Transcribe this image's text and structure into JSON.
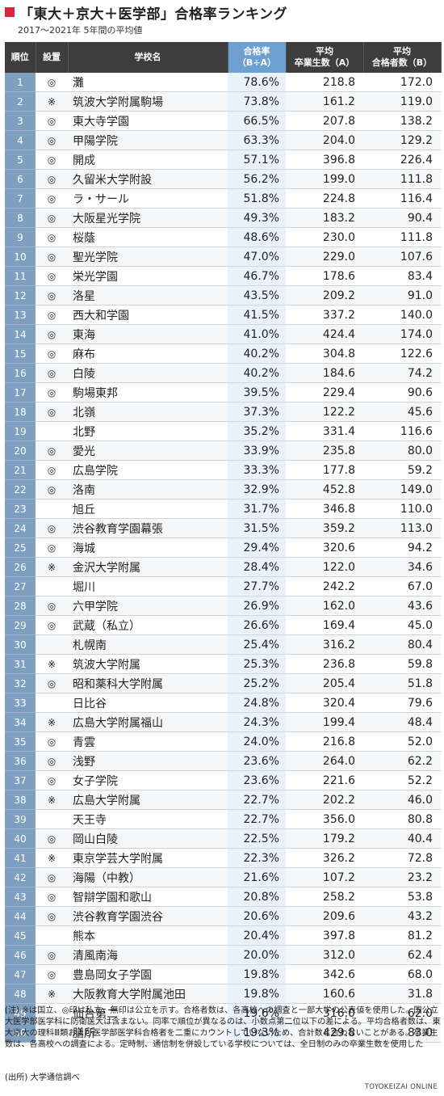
{
  "title": "「東大＋京大＋医学部」合格率ランキング",
  "subtitle": "2017～2021年 5年間の平均値",
  "headers": {
    "rank": "順位",
    "kind": "設置",
    "school": "学校名",
    "rate_line1": "合格率",
    "rate_line2": "（B÷A）",
    "grad_line1": "平均",
    "grad_line2": "卒業生数（A）",
    "pass_line1": "平均",
    "pass_line2": "合格者数（B）"
  },
  "rows": [
    {
      "rank": "1",
      "kind": "◎",
      "school": "灘",
      "rate": "78.6%",
      "grads": "218.8",
      "passes": "172.0"
    },
    {
      "rank": "2",
      "kind": "※",
      "school": "筑波大学附属駒場",
      "rate": "73.8%",
      "grads": "161.2",
      "passes": "119.0"
    },
    {
      "rank": "3",
      "kind": "◎",
      "school": "東大寺学園",
      "rate": "66.5%",
      "grads": "207.8",
      "passes": "138.2"
    },
    {
      "rank": "4",
      "kind": "◎",
      "school": "甲陽学院",
      "rate": "63.3%",
      "grads": "204.0",
      "passes": "129.2"
    },
    {
      "rank": "5",
      "kind": "◎",
      "school": "開成",
      "rate": "57.1%",
      "grads": "396.8",
      "passes": "226.4"
    },
    {
      "rank": "6",
      "kind": "◎",
      "school": "久留米大学附設",
      "rate": "56.2%",
      "grads": "199.0",
      "passes": "111.8"
    },
    {
      "rank": "7",
      "kind": "◎",
      "school": "ラ・サール",
      "rate": "51.8%",
      "grads": "224.8",
      "passes": "116.4"
    },
    {
      "rank": "8",
      "kind": "◎",
      "school": "大阪星光学院",
      "rate": "49.3%",
      "grads": "183.2",
      "passes": "90.4"
    },
    {
      "rank": "9",
      "kind": "◎",
      "school": "桜蔭",
      "rate": "48.6%",
      "grads": "230.0",
      "passes": "111.8"
    },
    {
      "rank": "10",
      "kind": "◎",
      "school": "聖光学院",
      "rate": "47.0%",
      "grads": "229.0",
      "passes": "107.6"
    },
    {
      "rank": "11",
      "kind": "◎",
      "school": "栄光学園",
      "rate": "46.7%",
      "grads": "178.6",
      "passes": "83.4"
    },
    {
      "rank": "12",
      "kind": "◎",
      "school": "洛星",
      "rate": "43.5%",
      "grads": "209.2",
      "passes": "91.0"
    },
    {
      "rank": "13",
      "kind": "◎",
      "school": "西大和学園",
      "rate": "41.5%",
      "grads": "337.2",
      "passes": "140.0"
    },
    {
      "rank": "14",
      "kind": "◎",
      "school": "東海",
      "rate": "41.0%",
      "grads": "424.4",
      "passes": "174.0"
    },
    {
      "rank": "15",
      "kind": "◎",
      "school": "麻布",
      "rate": "40.2%",
      "grads": "304.8",
      "passes": "122.6"
    },
    {
      "rank": "16",
      "kind": "◎",
      "school": "白陵",
      "rate": "40.2%",
      "grads": "184.6",
      "passes": "74.2"
    },
    {
      "rank": "17",
      "kind": "◎",
      "school": "駒場東邦",
      "rate": "39.5%",
      "grads": "229.4",
      "passes": "90.6"
    },
    {
      "rank": "18",
      "kind": "◎",
      "school": "北嶺",
      "rate": "37.3%",
      "grads": "122.2",
      "passes": "45.6"
    },
    {
      "rank": "19",
      "kind": "",
      "school": "北野",
      "rate": "35.2%",
      "grads": "331.4",
      "passes": "116.6"
    },
    {
      "rank": "20",
      "kind": "◎",
      "school": "愛光",
      "rate": "33.9%",
      "grads": "235.8",
      "passes": "80.0"
    },
    {
      "rank": "21",
      "kind": "◎",
      "school": "広島学院",
      "rate": "33.3%",
      "grads": "177.8",
      "passes": "59.2"
    },
    {
      "rank": "22",
      "kind": "◎",
      "school": "洛南",
      "rate": "32.9%",
      "grads": "452.8",
      "passes": "149.0"
    },
    {
      "rank": "23",
      "kind": "",
      "school": "旭丘",
      "rate": "31.7%",
      "grads": "346.8",
      "passes": "110.0"
    },
    {
      "rank": "24",
      "kind": "◎",
      "school": "渋谷教育学園幕張",
      "rate": "31.5%",
      "grads": "359.2",
      "passes": "113.0"
    },
    {
      "rank": "25",
      "kind": "◎",
      "school": "海城",
      "rate": "29.4%",
      "grads": "320.6",
      "passes": "94.2"
    },
    {
      "rank": "26",
      "kind": "※",
      "school": "金沢大学附属",
      "rate": "28.4%",
      "grads": "122.0",
      "passes": "34.6"
    },
    {
      "rank": "27",
      "kind": "",
      "school": "堀川",
      "rate": "27.7%",
      "grads": "242.2",
      "passes": "67.0"
    },
    {
      "rank": "28",
      "kind": "◎",
      "school": "六甲学院",
      "rate": "26.9%",
      "grads": "162.0",
      "passes": "43.6"
    },
    {
      "rank": "29",
      "kind": "◎",
      "school": "武蔵（私立）",
      "rate": "26.6%",
      "grads": "169.4",
      "passes": "45.0"
    },
    {
      "rank": "30",
      "kind": "",
      "school": "札幌南",
      "rate": "25.4%",
      "grads": "316.2",
      "passes": "80.4"
    },
    {
      "rank": "31",
      "kind": "※",
      "school": "筑波大学附属",
      "rate": "25.3%",
      "grads": "236.8",
      "passes": "59.8"
    },
    {
      "rank": "32",
      "kind": "◎",
      "school": "昭和薬科大学附属",
      "rate": "25.2%",
      "grads": "205.4",
      "passes": "51.8"
    },
    {
      "rank": "33",
      "kind": "",
      "school": "日比谷",
      "rate": "24.8%",
      "grads": "320.4",
      "passes": "79.6"
    },
    {
      "rank": "34",
      "kind": "※",
      "school": "広島大学附属福山",
      "rate": "24.3%",
      "grads": "199.4",
      "passes": "48.4"
    },
    {
      "rank": "35",
      "kind": "◎",
      "school": "青雲",
      "rate": "24.0%",
      "grads": "216.8",
      "passes": "52.0"
    },
    {
      "rank": "36",
      "kind": "◎",
      "school": "浅野",
      "rate": "23.6%",
      "grads": "264.0",
      "passes": "62.2"
    },
    {
      "rank": "37",
      "kind": "◎",
      "school": "女子学院",
      "rate": "23.6%",
      "grads": "221.6",
      "passes": "52.2"
    },
    {
      "rank": "38",
      "kind": "※",
      "school": "広島大学附属",
      "rate": "22.7%",
      "grads": "202.2",
      "passes": "46.0"
    },
    {
      "rank": "39",
      "kind": "",
      "school": "天王寺",
      "rate": "22.7%",
      "grads": "356.0",
      "passes": "80.8"
    },
    {
      "rank": "40",
      "kind": "◎",
      "school": "岡山白陵",
      "rate": "22.5%",
      "grads": "179.2",
      "passes": "40.4"
    },
    {
      "rank": "41",
      "kind": "※",
      "school": "東京学芸大学附属",
      "rate": "22.3%",
      "grads": "326.2",
      "passes": "72.8"
    },
    {
      "rank": "42",
      "kind": "◎",
      "school": "海陽（中教）",
      "rate": "21.6%",
      "grads": "107.2",
      "passes": "23.2"
    },
    {
      "rank": "43",
      "kind": "◎",
      "school": "智辯学園和歌山",
      "rate": "20.8%",
      "grads": "258.2",
      "passes": "53.8"
    },
    {
      "rank": "44",
      "kind": "◎",
      "school": "渋谷教育学園渋谷",
      "rate": "20.6%",
      "grads": "209.6",
      "passes": "43.2"
    },
    {
      "rank": "45",
      "kind": "",
      "school": "熊本",
      "rate": "20.4%",
      "grads": "397.8",
      "passes": "81.2"
    },
    {
      "rank": "46",
      "kind": "◎",
      "school": "清風南海",
      "rate": "20.0%",
      "grads": "312.0",
      "passes": "62.4"
    },
    {
      "rank": "47",
      "kind": "◎",
      "school": "豊島岡女子学園",
      "rate": "19.8%",
      "grads": "342.6",
      "passes": "68.0"
    },
    {
      "rank": "48",
      "kind": "※",
      "school": "大阪教育大学附属池田",
      "rate": "19.8%",
      "grads": "160.6",
      "passes": "31.8"
    },
    {
      "rank": "49",
      "kind": "",
      "school": "仙台第二",
      "rate": "19.6%",
      "grads": "316.0",
      "passes": "62.0"
    },
    {
      "rank": "50",
      "kind": "",
      "school": "膳所",
      "rate": "19.3%",
      "grads": "429.8",
      "passes": "83.0"
    }
  ],
  "note": "(注) ※は国立、◎印は私立、無印は公立を示す。合格者数は、各高校への調査と一部大学の公表値を使用した。国公立大医学部医学科に防衛医大は含まない。同率で順位が異なるのは、小数点第二位以下の差による。平均合格者数は、東大京大の理科Ⅲ類および医学部医学科合格者を二重にカウントしていないため、合計数と合わないことがある。卒業生数は、各高校への調査による。定時制、通信制を併設している学校については、全日制のみの卒業生数を使用した",
  "source": "(出所) 大学通信調べ",
  "brand": "TOYOKEIZAI ONLINE",
  "colors": {
    "accent": "#d7263d",
    "header": "#3d3d3d",
    "header_highlight": "#6d9fd0",
    "rank_cell": "#7f9fbf",
    "rate_cell": "#e9f1fa"
  }
}
